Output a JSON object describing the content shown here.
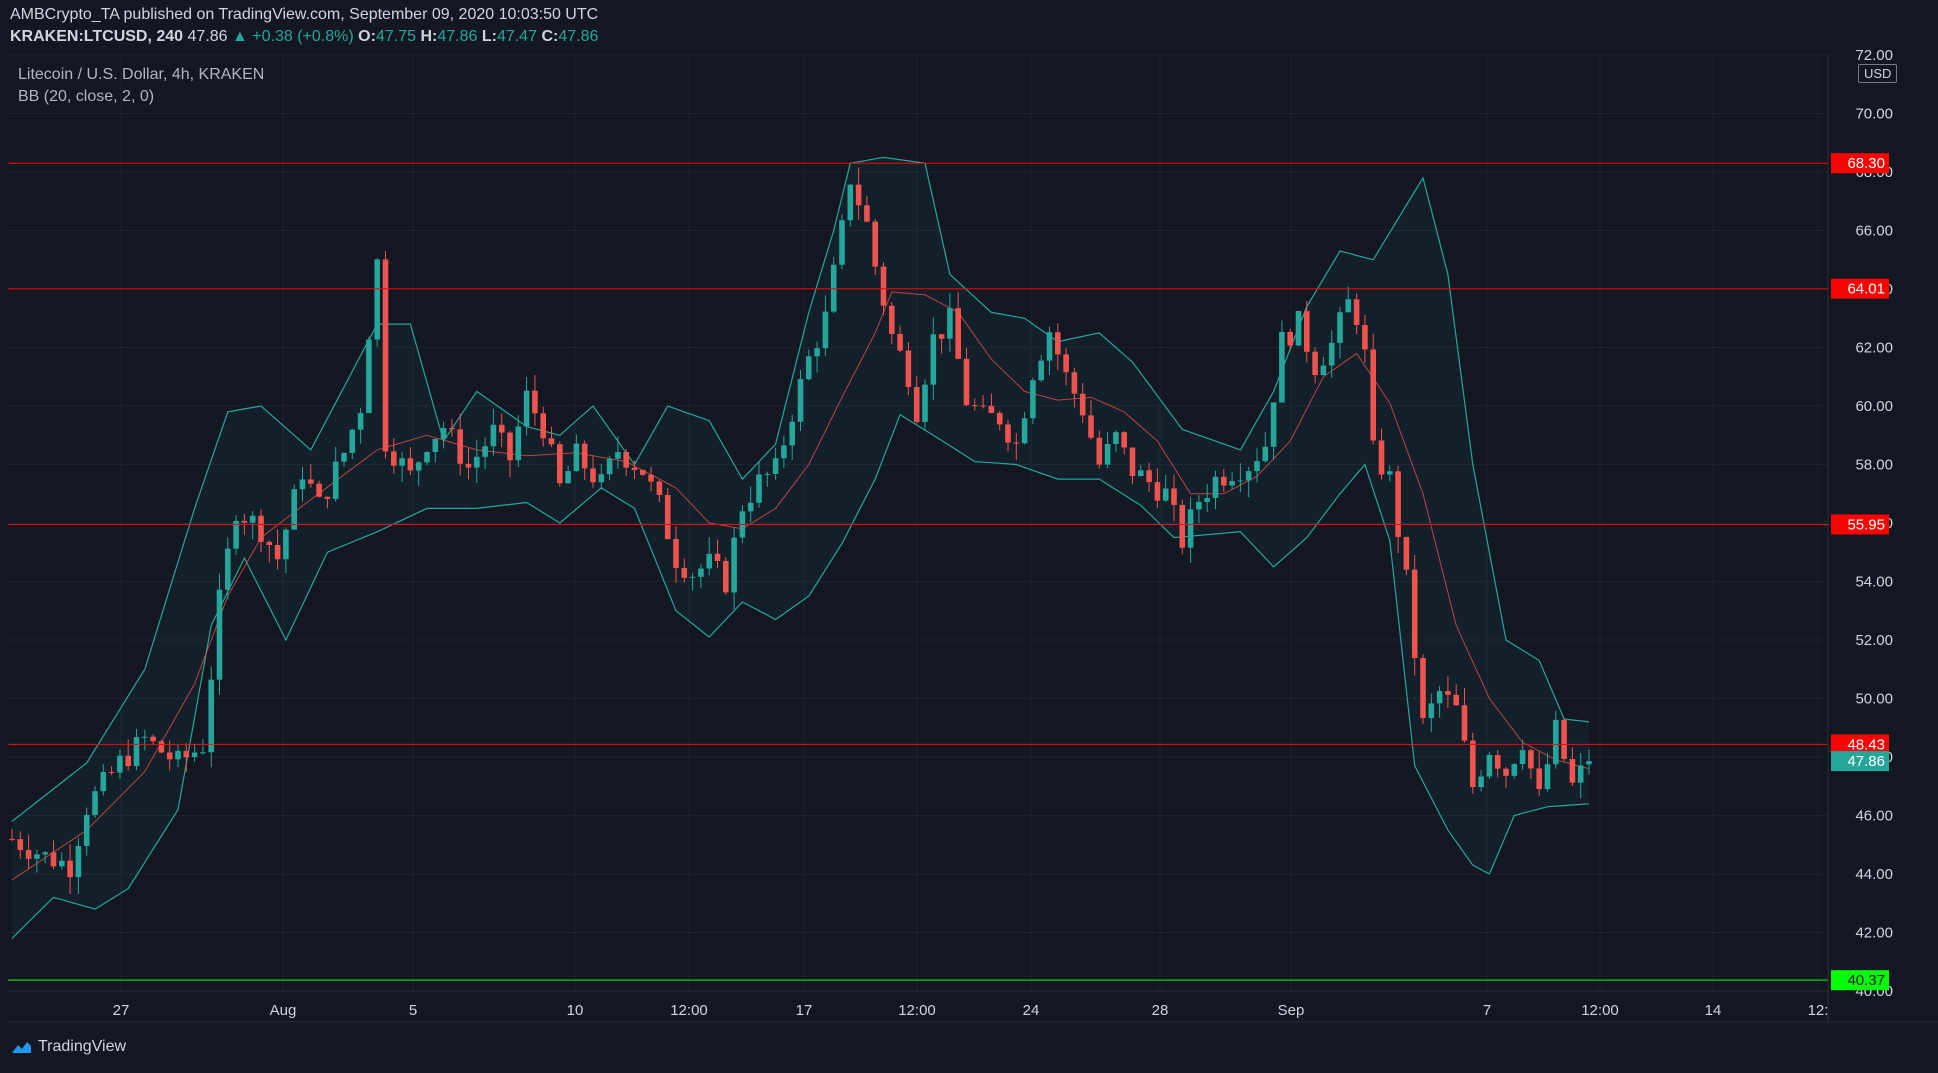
{
  "header": {
    "published": "AMBCrypto_TA published on TradingView.com, September 09, 2020 10:03:50 UTC",
    "symbol": "KRAKEN:LTCUSD, 240",
    "last_price": "47.86",
    "change": "▲ +0.38 (+0.8%)",
    "o_label": "O:",
    "o_value": "47.75",
    "h_label": "H:",
    "h_value": "47.86",
    "l_label": "L:",
    "l_value": "47.47",
    "c_label": "C:",
    "c_value": "47.86",
    "instrument": "Litecoin / U.S. Dollar, 4h, KRAKEN",
    "indicator": "BB (20, close, 2, 0)"
  },
  "currency": "USD",
  "brand": "TradingView",
  "colors": {
    "background": "#131722",
    "up": "#26a69a",
    "down": "#ef5350",
    "level_red": "#ff0000",
    "level_green": "#00ff00",
    "bb_band": "#26a69a",
    "bb_basis": "#ef5350"
  },
  "chart_data": {
    "type": "candlestick",
    "ylim": [
      40,
      72
    ],
    "y_ticks": [
      "40.00",
      "42.00",
      "44.00",
      "46.00",
      "48.00",
      "50.00",
      "52.00",
      "54.00",
      "56.00",
      "58.00",
      "60.00",
      "62.00",
      "64.00",
      "66.00",
      "68.00",
      "70.00",
      "72.00"
    ],
    "x_ticks": [
      "27",
      "Aug",
      "5",
      "10",
      "12:00",
      "17",
      "12:00",
      "24",
      "28",
      "Sep",
      "7",
      "12:00",
      "14",
      "12:"
    ],
    "horizontal_levels": [
      {
        "value": 68.3,
        "label": "68.30",
        "color": "#ff0000"
      },
      {
        "value": 64.01,
        "label": "64.01",
        "color": "#ff0000"
      },
      {
        "value": 55.95,
        "label": "55.95",
        "color": "#ff0000"
      },
      {
        "value": 48.43,
        "label": "48.43",
        "color": "#ff0000"
      },
      {
        "value": 40.37,
        "label": "40.37",
        "color": "#00ff00"
      }
    ],
    "last_price": {
      "value": 47.86,
      "label": "47.86"
    },
    "close_path": [
      [
        0,
        45.2
      ],
      [
        4,
        44.6
      ],
      [
        7,
        44.3
      ],
      [
        9,
        46.3
      ],
      [
        13,
        47.8
      ],
      [
        16,
        48.6
      ],
      [
        20,
        47.8
      ],
      [
        23,
        48.4
      ],
      [
        25,
        53.3
      ],
      [
        27,
        56.5
      ],
      [
        30,
        55.8
      ],
      [
        32,
        54.8
      ],
      [
        35,
        57.8
      ],
      [
        37,
        56.6
      ],
      [
        40,
        58.4
      ],
      [
        42,
        60.0
      ],
      [
        43,
        62.6
      ],
      [
        44,
        64.9
      ],
      [
        45,
        58.8
      ],
      [
        48,
        57.6
      ],
      [
        50,
        58.8
      ],
      [
        52,
        59.3
      ],
      [
        55,
        57.9
      ],
      [
        58,
        59.1
      ],
      [
        60,
        58.2
      ],
      [
        62,
        60.3
      ],
      [
        64,
        59.3
      ],
      [
        66,
        57.2
      ],
      [
        68,
        58.3
      ],
      [
        71,
        57.3
      ],
      [
        73,
        58.5
      ],
      [
        76,
        57.8
      ],
      [
        78,
        56.6
      ],
      [
        80,
        54.8
      ],
      [
        82,
        54.3
      ],
      [
        84,
        54.6
      ],
      [
        86,
        54.0
      ],
      [
        88,
        56.6
      ],
      [
        90,
        57.4
      ],
      [
        92,
        57.8
      ],
      [
        94,
        59.8
      ],
      [
        96,
        61.6
      ],
      [
        98,
        63.0
      ],
      [
        100,
        66.0
      ],
      [
        101,
        67.8
      ],
      [
        103,
        66.2
      ],
      [
        104,
        64.8
      ],
      [
        106,
        62.4
      ],
      [
        108,
        61.1
      ],
      [
        109,
        59.9
      ],
      [
        111,
        62.3
      ],
      [
        113,
        62.9
      ],
      [
        115,
        60.2
      ],
      [
        117,
        59.6
      ],
      [
        119,
        59.6
      ],
      [
        121,
        58.7
      ],
      [
        123,
        61.2
      ],
      [
        125,
        62.6
      ],
      [
        127,
        61.0
      ],
      [
        129,
        59.9
      ],
      [
        131,
        58.0
      ],
      [
        133,
        58.9
      ],
      [
        135,
        57.8
      ],
      [
        137,
        57.4
      ],
      [
        139,
        57.0
      ],
      [
        141,
        55.4
      ],
      [
        143,
        56.8
      ],
      [
        145,
        57.5
      ],
      [
        147,
        57.8
      ],
      [
        149,
        58.0
      ],
      [
        151,
        58.7
      ],
      [
        153,
        62.2
      ],
      [
        155,
        62.8
      ],
      [
        157,
        61.4
      ],
      [
        159,
        62.1
      ],
      [
        161,
        63.5
      ],
      [
        162,
        63.1
      ],
      [
        163,
        61.7
      ],
      [
        164,
        58.4
      ],
      [
        166,
        57.5
      ],
      [
        168,
        54.0
      ],
      [
        170,
        49.1
      ],
      [
        172,
        50.2
      ],
      [
        174,
        49.6
      ],
      [
        176,
        47.0
      ],
      [
        178,
        48.3
      ],
      [
        180,
        47.5
      ],
      [
        182,
        48.6
      ],
      [
        184,
        46.6
      ],
      [
        186,
        48.9
      ],
      [
        188,
        47.0
      ],
      [
        190,
        47.9
      ]
    ],
    "bb_upper_path": [
      [
        0,
        45.8
      ],
      [
        9,
        47.8
      ],
      [
        16,
        51.0
      ],
      [
        22,
        56.5
      ],
      [
        26,
        59.8
      ],
      [
        30,
        60.0
      ],
      [
        36,
        58.5
      ],
      [
        44,
        62.8
      ],
      [
        48,
        62.8
      ],
      [
        52,
        58.8
      ],
      [
        56,
        60.5
      ],
      [
        62,
        59.3
      ],
      [
        66,
        59.0
      ],
      [
        70,
        60.0
      ],
      [
        75,
        58.0
      ],
      [
        79,
        60.0
      ],
      [
        84,
        59.5
      ],
      [
        88,
        57.5
      ],
      [
        92,
        58.7
      ],
      [
        96,
        63.2
      ],
      [
        99,
        66.0
      ],
      [
        101,
        68.3
      ],
      [
        105,
        68.5
      ],
      [
        110,
        68.3
      ],
      [
        113,
        64.5
      ],
      [
        118,
        63.2
      ],
      [
        122,
        63.0
      ],
      [
        126,
        62.2
      ],
      [
        131,
        62.5
      ],
      [
        135,
        61.5
      ],
      [
        141,
        59.2
      ],
      [
        148,
        58.5
      ],
      [
        152,
        60.5
      ],
      [
        156,
        63.4
      ],
      [
        160,
        65.3
      ],
      [
        164,
        65.0
      ],
      [
        167,
        66.4
      ],
      [
        170,
        67.8
      ],
      [
        173,
        64.5
      ],
      [
        176,
        58.0
      ],
      [
        180,
        52.0
      ],
      [
        184,
        51.3
      ],
      [
        187,
        49.3
      ],
      [
        190,
        49.2
      ]
    ],
    "bb_lower_path": [
      [
        0,
        41.8
      ],
      [
        5,
        43.2
      ],
      [
        10,
        42.8
      ],
      [
        14,
        43.5
      ],
      [
        20,
        46.2
      ],
      [
        24,
        52.5
      ],
      [
        28,
        54.8
      ],
      [
        33,
        52.0
      ],
      [
        38,
        55.0
      ],
      [
        44,
        55.7
      ],
      [
        50,
        56.5
      ],
      [
        56,
        56.5
      ],
      [
        62,
        56.7
      ],
      [
        66,
        56.0
      ],
      [
        71,
        57.2
      ],
      [
        75,
        56.5
      ],
      [
        80,
        53.0
      ],
      [
        84,
        52.1
      ],
      [
        88,
        53.3
      ],
      [
        92,
        52.7
      ],
      [
        96,
        53.5
      ],
      [
        100,
        55.3
      ],
      [
        104,
        57.5
      ],
      [
        107,
        59.7
      ],
      [
        111,
        59.0
      ],
      [
        116,
        58.1
      ],
      [
        121,
        58.0
      ],
      [
        126,
        57.5
      ],
      [
        131,
        57.5
      ],
      [
        136,
        56.6
      ],
      [
        140,
        55.5
      ],
      [
        144,
        55.6
      ],
      [
        148,
        55.7
      ],
      [
        152,
        54.5
      ],
      [
        156,
        55.5
      ],
      [
        160,
        57.0
      ],
      [
        163,
        58.0
      ],
      [
        166,
        55.4
      ],
      [
        169,
        47.7
      ],
      [
        173,
        45.5
      ],
      [
        176,
        44.3
      ],
      [
        178,
        44.0
      ],
      [
        181,
        46.0
      ],
      [
        185,
        46.3
      ],
      [
        190,
        46.4
      ]
    ],
    "bb_basis_path": [
      [
        0,
        43.8
      ],
      [
        9,
        45.5
      ],
      [
        16,
        47.5
      ],
      [
        22,
        50.5
      ],
      [
        26,
        53.5
      ],
      [
        30,
        55.5
      ],
      [
        36,
        56.8
      ],
      [
        44,
        58.5
      ],
      [
        50,
        59.0
      ],
      [
        56,
        58.5
      ],
      [
        62,
        58.3
      ],
      [
        68,
        58.4
      ],
      [
        74,
        58.1
      ],
      [
        80,
        57.2
      ],
      [
        84,
        56.0
      ],
      [
        88,
        55.8
      ],
      [
        92,
        56.5
      ],
      [
        96,
        58.0
      ],
      [
        100,
        60.3
      ],
      [
        104,
        62.5
      ],
      [
        106,
        63.9
      ],
      [
        110,
        63.8
      ],
      [
        114,
        63.2
      ],
      [
        118,
        61.6
      ],
      [
        122,
        60.5
      ],
      [
        126,
        60.2
      ],
      [
        130,
        60.3
      ],
      [
        134,
        59.8
      ],
      [
        138,
        58.8
      ],
      [
        142,
        57.0
      ],
      [
        146,
        57.0
      ],
      [
        150,
        57.6
      ],
      [
        154,
        58.8
      ],
      [
        158,
        61.0
      ],
      [
        162,
        61.8
      ],
      [
        166,
        60.1
      ],
      [
        170,
        57.0
      ],
      [
        174,
        52.5
      ],
      [
        178,
        50.0
      ],
      [
        182,
        48.5
      ],
      [
        186,
        47.9
      ],
      [
        190,
        47.6
      ]
    ]
  }
}
